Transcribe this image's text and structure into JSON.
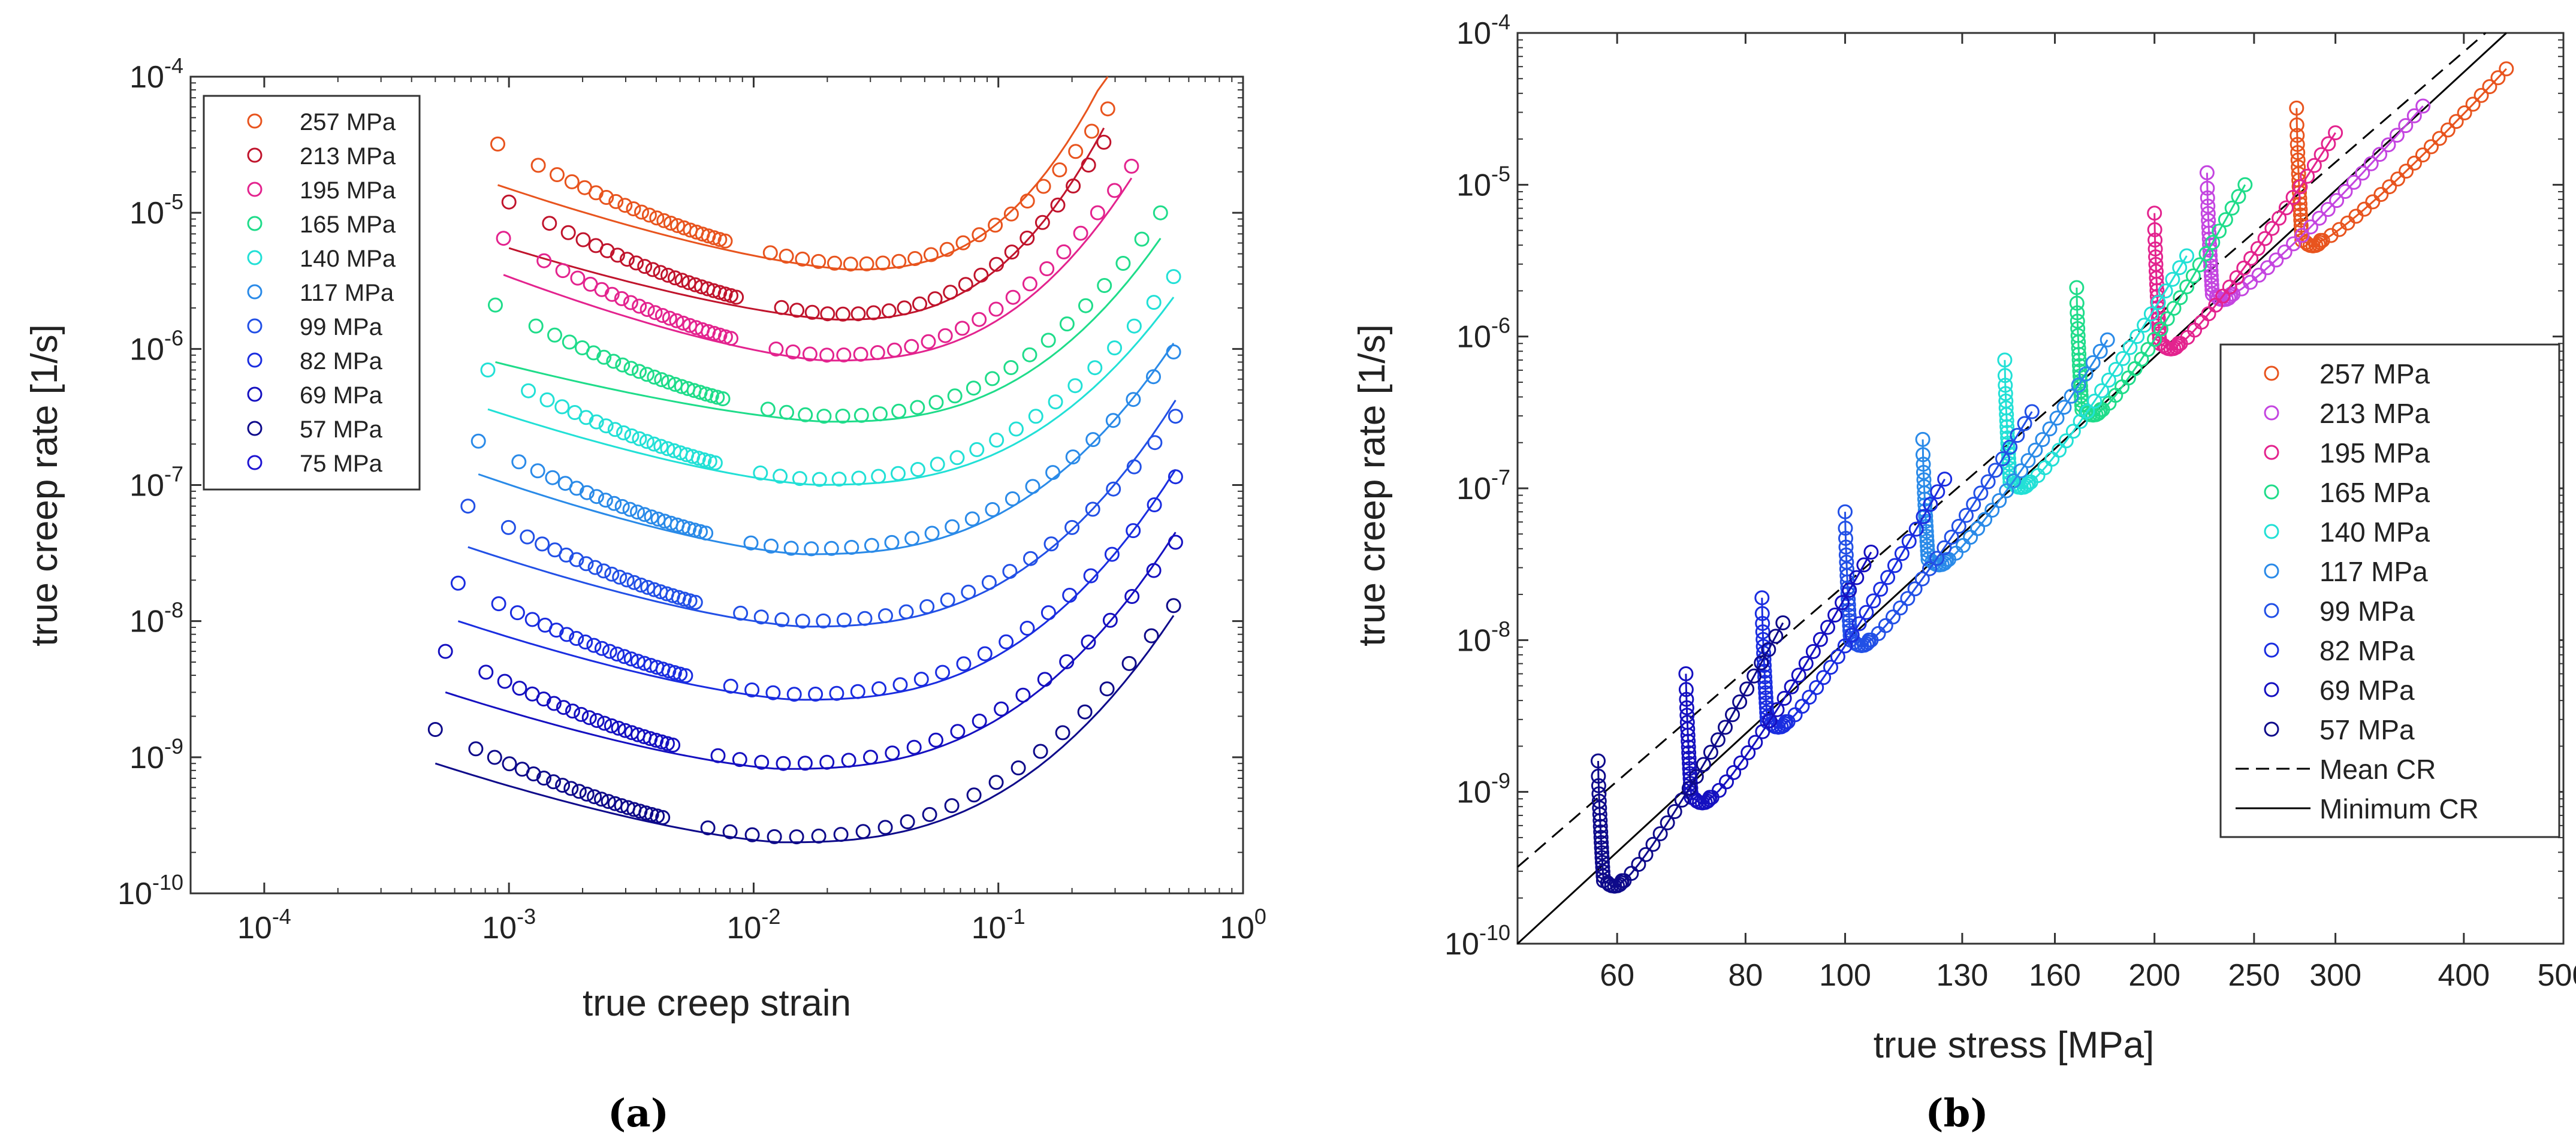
{
  "chart_data": [
    {
      "panel": "a",
      "type": "scatter",
      "panel_label": "(a)",
      "xlabel": "true creep strain",
      "ylabel": "true creep rate [1/s]",
      "xscale": "log",
      "yscale": "log",
      "xlim": [
        5e-05,
        1.0
      ],
      "ylim": [
        1e-10,
        0.0001
      ],
      "x_ticks": [
        {
          "value": 0.0001,
          "base": "10",
          "exp": "-4"
        },
        {
          "value": 0.001,
          "base": "10",
          "exp": "-3"
        },
        {
          "value": 0.01,
          "base": "10",
          "exp": "-2"
        },
        {
          "value": 0.1,
          "base": "10",
          "exp": "-1"
        },
        {
          "value": 1,
          "base": "10",
          "exp": "0"
        }
      ],
      "y_ticks": [
        {
          "value": 1e-10,
          "base": "10",
          "exp": "-10"
        },
        {
          "value": 1e-09,
          "base": "10",
          "exp": "-9"
        },
        {
          "value": 1e-08,
          "base": "10",
          "exp": "-8"
        },
        {
          "value": 1e-07,
          "base": "10",
          "exp": "-7"
        },
        {
          "value": 1e-06,
          "base": "10",
          "exp": "-6"
        },
        {
          "value": 1e-05,
          "base": "10",
          "exp": "-5"
        },
        {
          "value": 0.0001,
          "base": "10",
          "exp": "-4"
        }
      ],
      "legend_position": "top-left",
      "series": [
        {
          "name": "257 MPa",
          "color": "#e8541e",
          "start_strain": 0.0009,
          "start_rate": 3.2e-05,
          "min_rate": 4.2e-06,
          "min_strain": 0.025,
          "end_strain": 0.28,
          "end_rate": 5.8e-05,
          "fit_start": 1.6e-05,
          "fit_end": 0.00011
        },
        {
          "name": "213 MPa",
          "color": "#c0142c",
          "start_strain": 0.001,
          "start_rate": 1.2e-05,
          "min_rate": 1.8e-06,
          "min_strain": 0.022,
          "end_strain": 0.27,
          "end_rate": 3.3e-05,
          "fit_start": 5.5e-06,
          "fit_end": 4.2e-05
        },
        {
          "name": "195 MPa",
          "color": "#e3238e",
          "start_strain": 0.00095,
          "start_rate": 6.5e-06,
          "min_rate": 9e-07,
          "min_strain": 0.02,
          "end_strain": 0.35,
          "end_rate": 2.2e-05,
          "fit_start": 3.5e-06,
          "fit_end": 1.8e-05
        },
        {
          "name": "165 MPa",
          "color": "#1fdc8a",
          "start_strain": 0.00088,
          "start_rate": 2.1e-06,
          "min_rate": 3.2e-07,
          "min_strain": 0.02,
          "end_strain": 0.46,
          "end_rate": 1e-05,
          "fit_start": 8e-07,
          "fit_end": 6.5e-06
        },
        {
          "name": "140 MPa",
          "color": "#22e0d6",
          "start_strain": 0.00082,
          "start_rate": 7e-07,
          "min_rate": 1.1e-07,
          "min_strain": 0.018,
          "end_strain": 0.52,
          "end_rate": 3.4e-06,
          "fit_start": 3.6e-07,
          "fit_end": 2.4e-06
        },
        {
          "name": "117 MPa",
          "color": "#2a8ae8",
          "start_strain": 0.00075,
          "start_rate": 2.1e-07,
          "min_rate": 3.4e-08,
          "min_strain": 0.016,
          "end_strain": 0.52,
          "end_rate": 9.5e-07,
          "fit_start": 1.2e-07,
          "fit_end": 1.1e-06
        },
        {
          "name": "99 MPa",
          "color": "#2250e6",
          "start_strain": 0.00068,
          "start_rate": 7e-08,
          "min_rate": 1e-08,
          "min_strain": 0.016,
          "end_strain": 0.53,
          "end_rate": 3.2e-07,
          "fit_start": 3.5e-08,
          "fit_end": 4.2e-07
        },
        {
          "name": "82 MPa",
          "color": "#1a2de0",
          "start_strain": 0.00062,
          "start_rate": 1.9e-08,
          "min_rate": 2.9e-09,
          "min_strain": 0.015,
          "end_strain": 0.53,
          "end_rate": 1.15e-07,
          "fit_start": 1e-08,
          "fit_end": 1.3e-07
        },
        {
          "name": "69 MPa",
          "color": "#1510c0",
          "start_strain": 0.00055,
          "start_rate": 6e-09,
          "min_rate": 9e-10,
          "min_strain": 0.013,
          "end_strain": 0.53,
          "end_rate": 3.8e-08,
          "fit_start": 3e-09,
          "fit_end": 4.5e-08
        },
        {
          "name": "57 MPa",
          "color": "#0e0a8a",
          "start_strain": 0.0005,
          "start_rate": 1.6e-09,
          "min_rate": 2.6e-10,
          "min_strain": 0.013,
          "end_strain": 0.52,
          "end_rate": 1.3e-08,
          "fit_start": 9e-10,
          "fit_end": 1.1e-08
        },
        {
          "name": "75 MPa",
          "color": "#1e14d2",
          "legend_only": true
        }
      ]
    },
    {
      "panel": "b",
      "type": "scatter",
      "panel_label": "(b)",
      "xlabel": "true stress [MPa]",
      "ylabel": "true creep rate [1/s]",
      "xscale": "log",
      "yscale": "log",
      "xlim": [
        48,
        500
      ],
      "ylim": [
        1e-10,
        0.0001
      ],
      "x_ticks": [
        {
          "value": 60,
          "label": "60"
        },
        {
          "value": 80,
          "label": "80"
        },
        {
          "value": 100,
          "label": "100"
        },
        {
          "value": 130,
          "label": "130"
        },
        {
          "value": 160,
          "label": "160"
        },
        {
          "value": 200,
          "label": "200"
        },
        {
          "value": 250,
          "label": "250"
        },
        {
          "value": 300,
          "label": "300"
        },
        {
          "value": 400,
          "label": "400"
        },
        {
          "value": 500,
          "label": "500"
        }
      ],
      "y_ticks": [
        {
          "value": 1e-10,
          "base": "10",
          "exp": "-10"
        },
        {
          "value": 1e-09,
          "base": "10",
          "exp": "-9"
        },
        {
          "value": 1e-08,
          "base": "10",
          "exp": "-8"
        },
        {
          "value": 1e-07,
          "base": "10",
          "exp": "-7"
        },
        {
          "value": 1e-06,
          "base": "10",
          "exp": "-6"
        },
        {
          "value": 1e-05,
          "base": "10",
          "exp": "-5"
        },
        {
          "value": 0.0001,
          "base": "10",
          "exp": "-4"
        }
      ],
      "legend_position": "bottom-right",
      "series": [
        {
          "name": "257 MPa",
          "color": "#e8541e",
          "stress": 275,
          "peak_rate": 3.2e-05,
          "min_rate": 4.3e-06,
          "end_stress": 440,
          "end_rate": 5.8e-05
        },
        {
          "name": "213 MPa",
          "color": "#c445e0",
          "stress": 225,
          "peak_rate": 1.2e-05,
          "min_rate": 1.9e-06,
          "end_stress": 365,
          "end_rate": 3.3e-05
        },
        {
          "name": "195 MPa",
          "color": "#e3238e",
          "stress": 200,
          "peak_rate": 6.5e-06,
          "min_rate": 9e-07,
          "end_stress": 300,
          "end_rate": 2.2e-05
        },
        {
          "name": "165 MPa",
          "color": "#1fdc8a",
          "stress": 168,
          "peak_rate": 2.1e-06,
          "min_rate": 3.3e-07,
          "end_stress": 245,
          "end_rate": 1e-05
        },
        {
          "name": "140 MPa",
          "color": "#22e0d6",
          "stress": 143,
          "peak_rate": 7e-07,
          "min_rate": 1.1e-07,
          "end_stress": 215,
          "end_rate": 3.4e-06
        },
        {
          "name": "117 MPa",
          "color": "#2a8ae8",
          "stress": 119,
          "peak_rate": 2.1e-07,
          "min_rate": 3.4e-08,
          "end_stress": 180,
          "end_rate": 9.5e-07
        },
        {
          "name": "99 MPa",
          "color": "#2250e6",
          "stress": 100,
          "peak_rate": 7e-08,
          "min_rate": 1e-08,
          "end_stress": 152,
          "end_rate": 3.2e-07
        },
        {
          "name": "82 MPa",
          "color": "#1a2de0",
          "stress": 83,
          "peak_rate": 1.9e-08,
          "min_rate": 2.9e-09,
          "end_stress": 125,
          "end_rate": 1.15e-07
        },
        {
          "name": "69 MPa",
          "color": "#1510c0",
          "stress": 70,
          "peak_rate": 6e-09,
          "min_rate": 9.2e-10,
          "end_stress": 106,
          "end_rate": 3.8e-08
        },
        {
          "name": "57 MPa",
          "color": "#0e0a8a",
          "stress": 57.5,
          "peak_rate": 1.6e-09,
          "min_rate": 2.6e-10,
          "end_stress": 87,
          "end_rate": 1.3e-08
        }
      ],
      "reference_lines": [
        {
          "name": "Mean CR",
          "style": "dashed",
          "color": "#000000",
          "from": [
            48,
            3.2e-10
          ],
          "to": [
            420,
            0.0001
          ]
        },
        {
          "name": "Minimum CR",
          "style": "solid",
          "color": "#000000",
          "from": [
            48,
            1e-10
          ],
          "to": [
            440,
            0.0001
          ]
        }
      ]
    }
  ]
}
